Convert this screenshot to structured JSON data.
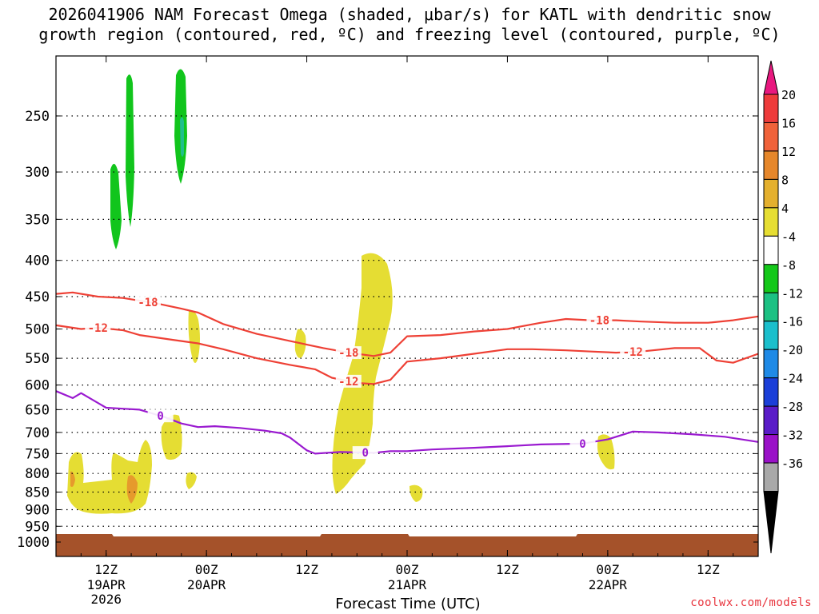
{
  "title": {
    "line1": "2026041906 NAM Forecast Omega (shaded, μbar/s) for KATL with dendritic snow",
    "line2": "growth region (contoured, red, ºC) and freezing level (contoured, purple, ºC)"
  },
  "xlabel": "Forecast Time (UTC)",
  "watermark": "coolwx.com/models",
  "colors": {
    "dgz_contour": "#ee4035",
    "freezing_contour": "#9a1ad0",
    "terrain": "#a5522a",
    "omega_4_8": "#e5dd33",
    "omega_12_16": "#e69a2c",
    "omega_minus8_minus4": "#11c51c",
    "omega_minus12_minus8": "#1fbf8c"
  },
  "chart_data": {
    "type": "heatmap",
    "x_axis": {
      "ticks": [
        {
          "hour": 6,
          "label": "12Z",
          "sub": [
            "19APR",
            "2026"
          ]
        },
        {
          "hour": 18,
          "label": "00Z",
          "sub": [
            "20APR"
          ]
        },
        {
          "hour": 30,
          "label": "12Z",
          "sub": []
        },
        {
          "hour": 42,
          "label": "00Z",
          "sub": [
            "21APR"
          ]
        },
        {
          "hour": 54,
          "label": "12Z",
          "sub": []
        },
        {
          "hour": 66,
          "label": "00Z",
          "sub": [
            "22APR"
          ]
        },
        {
          "hour": 78,
          "label": "12Z",
          "sub": []
        }
      ],
      "range_hours": [
        0,
        84
      ]
    },
    "y_axis": {
      "ticks": [
        250,
        300,
        350,
        400,
        450,
        500,
        550,
        600,
        650,
        700,
        750,
        800,
        850,
        900,
        950,
        1000
      ],
      "range_hPa": [
        200,
        1020
      ],
      "log_scale": true,
      "grid": true
    },
    "colorbar": {
      "labels": [
        "20",
        "16",
        "12",
        "8",
        "4",
        "-4",
        "-8",
        "-12",
        "-16",
        "-20",
        "-24",
        "-28",
        "-32",
        "-36"
      ],
      "colors": [
        "#e8187f",
        "#ee3b3b",
        "#f0623a",
        "#e6872b",
        "#e4b02e",
        "#e6de33",
        "#ffffff",
        "#14c81a",
        "#1cc183",
        "#1bbfcc",
        "#1f8ae6",
        "#1b3fd8",
        "#5a1cc8",
        "#9a12c8",
        "#a9a9a9",
        "#000000"
      ]
    },
    "contours": [
      {
        "label": "-18",
        "color": "#ee4035",
        "points": [
          [
            0,
            446
          ],
          [
            2,
            444
          ],
          [
            5,
            450
          ],
          [
            8,
            452
          ],
          [
            12,
            460
          ],
          [
            15,
            468
          ],
          [
            17,
            474
          ],
          [
            20,
            492
          ],
          [
            24,
            508
          ],
          [
            28,
            520
          ],
          [
            32,
            532
          ],
          [
            35,
            540
          ],
          [
            38,
            546
          ],
          [
            40,
            540
          ],
          [
            42,
            512
          ],
          [
            46,
            510
          ],
          [
            50,
            504
          ],
          [
            54,
            500
          ],
          [
            58,
            490
          ],
          [
            61,
            484
          ],
          [
            64,
            486
          ],
          [
            67,
            486
          ],
          [
            70,
            488
          ],
          [
            74,
            490
          ],
          [
            78,
            490
          ],
          [
            81,
            486
          ],
          [
            84,
            480
          ]
        ]
      },
      {
        "label": "-12",
        "color": "#ee4035",
        "points": [
          [
            0,
            494
          ],
          [
            3,
            500
          ],
          [
            5,
            498
          ],
          [
            8,
            502
          ],
          [
            10,
            510
          ],
          [
            14,
            518
          ],
          [
            17,
            524
          ],
          [
            20,
            534
          ],
          [
            24,
            550
          ],
          [
            28,
            562
          ],
          [
            31,
            570
          ],
          [
            33,
            586
          ],
          [
            36,
            596
          ],
          [
            38,
            598
          ],
          [
            40,
            590
          ],
          [
            42,
            556
          ],
          [
            46,
            550
          ],
          [
            50,
            542
          ],
          [
            54,
            534
          ],
          [
            57,
            534
          ],
          [
            61,
            536
          ],
          [
            64,
            538
          ],
          [
            67,
            540
          ],
          [
            70,
            538
          ],
          [
            74,
            532
          ],
          [
            77,
            532
          ],
          [
            79,
            554
          ],
          [
            81,
            558
          ],
          [
            84,
            542
          ]
        ]
      },
      {
        "label": "0",
        "color": "#9a1ad0",
        "points": [
          [
            0,
            612
          ],
          [
            2,
            626
          ],
          [
            3,
            616
          ],
          [
            6,
            646
          ],
          [
            8,
            648
          ],
          [
            10,
            650
          ],
          [
            13,
            666
          ],
          [
            15,
            680
          ],
          [
            17,
            688
          ],
          [
            19,
            686
          ],
          [
            22,
            690
          ],
          [
            25,
            696
          ],
          [
            27,
            702
          ],
          [
            28,
            712
          ],
          [
            30,
            742
          ],
          [
            31,
            750
          ],
          [
            34,
            746
          ],
          [
            38,
            748
          ],
          [
            40,
            744
          ],
          [
            42,
            744
          ],
          [
            45,
            740
          ],
          [
            50,
            736
          ],
          [
            54,
            732
          ],
          [
            58,
            728
          ],
          [
            63,
            726
          ],
          [
            66,
            716
          ],
          [
            69,
            698
          ],
          [
            72,
            700
          ],
          [
            76,
            704
          ],
          [
            80,
            710
          ],
          [
            84,
            722
          ]
        ]
      }
    ]
  }
}
